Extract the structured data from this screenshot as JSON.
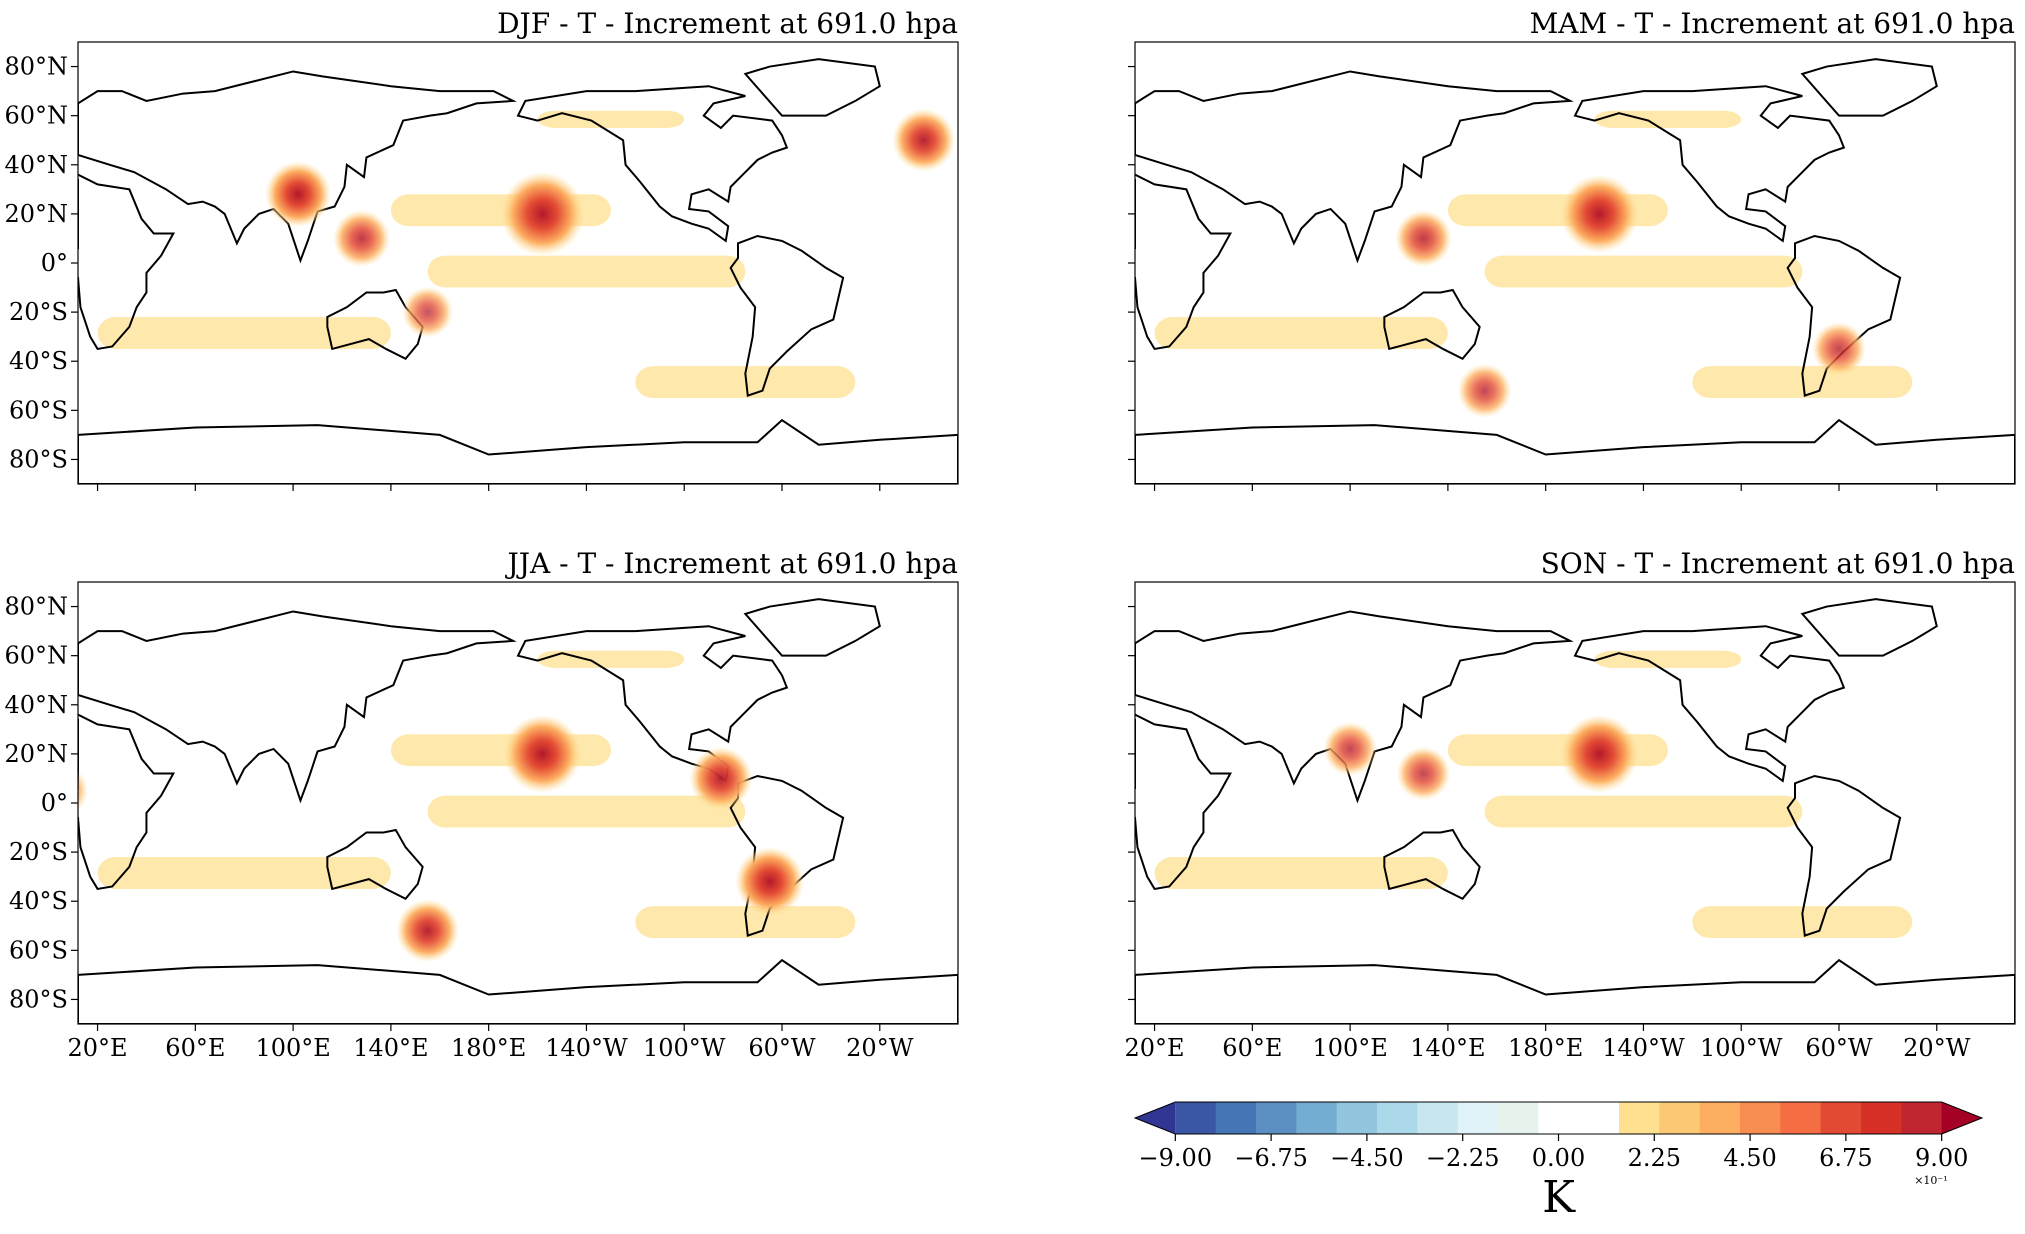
{
  "chart_data": [
    {
      "type": "heatmap",
      "title": "DJF - T - Increment at 691.0 hpa",
      "xticks": [
        "20°E",
        "60°E",
        "100°E",
        "140°E",
        "180°E",
        "140°W",
        "100°W",
        "60°W",
        "20°W"
      ],
      "yticks": [
        "80°N",
        "60°N",
        "40°N",
        "20°N",
        "0°",
        "20°S",
        "40°S",
        "60°S",
        "80°S"
      ],
      "show_x_labels": false,
      "show_y_labels": true,
      "xlim": [
        0,
        360
      ],
      "ylim": [
        -90,
        90
      ],
      "hotspots": [
        {
          "lon": 202,
          "lat": 20,
          "value": 0.8
        },
        {
          "lon": 102,
          "lat": 28,
          "value": 0.5
        },
        {
          "lon": 358,
          "lat": 50,
          "value": 0.45
        },
        {
          "lon": 128,
          "lat": 10,
          "value": 0.35
        },
        {
          "lon": 155,
          "lat": -20,
          "value": 0.25
        }
      ]
    },
    {
      "type": "heatmap",
      "title": "MAM - T - Increment at 691.0 hpa",
      "xticks": [
        "20°E",
        "60°E",
        "100°E",
        "140°E",
        "180°E",
        "140°W",
        "100°W",
        "60°W",
        "20°W"
      ],
      "yticks": [
        "80°N",
        "60°N",
        "40°N",
        "20°N",
        "0°",
        "20°S",
        "40°S",
        "60°S",
        "80°S"
      ],
      "show_x_labels": false,
      "show_y_labels": false,
      "xlim": [
        0,
        360
      ],
      "ylim": [
        -90,
        90
      ],
      "hotspots": [
        {
          "lon": 202,
          "lat": 20,
          "value": 0.7
        },
        {
          "lon": 130,
          "lat": 10,
          "value": 0.35
        },
        {
          "lon": 155,
          "lat": -52,
          "value": 0.3
        },
        {
          "lon": 300,
          "lat": -35,
          "value": 0.3
        }
      ]
    },
    {
      "type": "heatmap",
      "title": "JJA - T - Increment at 691.0 hpa",
      "xticks": [
        "20°E",
        "60°E",
        "100°E",
        "140°E",
        "180°E",
        "140°W",
        "100°W",
        "60°W",
        "20°W"
      ],
      "yticks": [
        "80°N",
        "60°N",
        "40°N",
        "20°N",
        "0°",
        "20°S",
        "40°S",
        "60°S",
        "80°S"
      ],
      "show_x_labels": true,
      "show_y_labels": true,
      "xlim": [
        0,
        360
      ],
      "ylim": [
        -90,
        90
      ],
      "hotspots": [
        {
          "lon": 202,
          "lat": 20,
          "value": 0.7
        },
        {
          "lon": 295,
          "lat": -32,
          "value": 0.55
        },
        {
          "lon": 275,
          "lat": 10,
          "value": 0.45
        },
        {
          "lon": 155,
          "lat": -52,
          "value": 0.45
        },
        {
          "lon": 5,
          "lat": 5,
          "value": 0.3
        }
      ]
    },
    {
      "type": "heatmap",
      "title": "SON - T - Increment at 691.0 hpa",
      "xticks": [
        "20°E",
        "60°E",
        "100°E",
        "140°E",
        "180°E",
        "140°W",
        "100°W",
        "60°W",
        "20°W"
      ],
      "yticks": [
        "80°N",
        "60°N",
        "40°N",
        "20°N",
        "0°",
        "20°S",
        "40°S",
        "60°S",
        "80°S"
      ],
      "show_x_labels": true,
      "show_y_labels": false,
      "xlim": [
        0,
        360
      ],
      "ylim": [
        -90,
        90
      ],
      "hotspots": [
        {
          "lon": 202,
          "lat": 20,
          "value": 0.7
        },
        {
          "lon": 130,
          "lat": 12,
          "value": 0.3
        },
        {
          "lon": 100,
          "lat": 22,
          "value": 0.3
        }
      ]
    }
  ],
  "colorbar": {
    "label": "K",
    "ticks": [
      "−9.00",
      "−6.75",
      "−4.50",
      "−2.25",
      "0.00",
      "2.25",
      "4.50",
      "6.75",
      "9.00"
    ],
    "multiplier": "×10⁻¹",
    "range": [
      -0.9,
      0.9
    ],
    "colors": [
      "#313695",
      "#3a56a4",
      "#4575b4",
      "#5b8fc3",
      "#74add1",
      "#92c5de",
      "#abd9e9",
      "#c7e6ef",
      "#e0f3f8",
      "#e6f2ec",
      "#ffffff",
      "#ffffff",
      "#fee090",
      "#fdc873",
      "#fdae61",
      "#f88d52",
      "#f46d43",
      "#e34a33",
      "#d73027",
      "#c0262f",
      "#a50026"
    ]
  }
}
